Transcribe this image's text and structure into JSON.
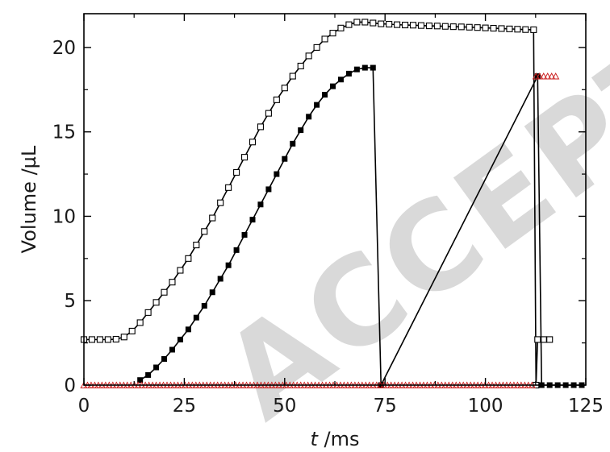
{
  "chart_data": {
    "type": "scatter",
    "xlabel_italic": "t",
    "xlabel_unit": " /ms",
    "ylabel": "Volume /µL",
    "xlim": [
      0,
      125
    ],
    "ylim": [
      0,
      22
    ],
    "xticks": [
      0,
      25,
      50,
      75,
      100,
      125
    ],
    "yticks": [
      0,
      5,
      10,
      15,
      20
    ],
    "grid": false,
    "legend": "none",
    "watermark": "ACCEPTED MANUSCRIPT",
    "series": [
      {
        "marker": "open-square",
        "color": "#000000",
        "connect": true,
        "points": [
          [
            0,
            2.7
          ],
          [
            2,
            2.7
          ],
          [
            4,
            2.7
          ],
          [
            6,
            2.7
          ],
          [
            8,
            2.72
          ],
          [
            10,
            2.85
          ],
          [
            12,
            3.2
          ],
          [
            14,
            3.7
          ],
          [
            16,
            4.3
          ],
          [
            18,
            4.9
          ],
          [
            20,
            5.5
          ],
          [
            22,
            6.1
          ],
          [
            24,
            6.8
          ],
          [
            26,
            7.5
          ],
          [
            28,
            8.3
          ],
          [
            30,
            9.1
          ],
          [
            32,
            9.9
          ],
          [
            34,
            10.8
          ],
          [
            36,
            11.7
          ],
          [
            38,
            12.6
          ],
          [
            40,
            13.5
          ],
          [
            42,
            14.4
          ],
          [
            44,
            15.3
          ],
          [
            46,
            16.1
          ],
          [
            48,
            16.9
          ],
          [
            50,
            17.6
          ],
          [
            52,
            18.3
          ],
          [
            54,
            18.9
          ],
          [
            56,
            19.5
          ],
          [
            58,
            20.0
          ],
          [
            60,
            20.5
          ],
          [
            62,
            20.85
          ],
          [
            64,
            21.15
          ],
          [
            66,
            21.35
          ],
          [
            68,
            21.5
          ],
          [
            70,
            21.5
          ],
          [
            72,
            21.45
          ],
          [
            74,
            21.4
          ],
          [
            76,
            21.38
          ],
          [
            78,
            21.35
          ],
          [
            80,
            21.33
          ],
          [
            82,
            21.32
          ],
          [
            84,
            21.3
          ],
          [
            86,
            21.28
          ],
          [
            88,
            21.27
          ],
          [
            90,
            21.25
          ],
          [
            92,
            21.23
          ],
          [
            94,
            21.22
          ],
          [
            96,
            21.2
          ],
          [
            98,
            21.18
          ],
          [
            100,
            21.16
          ],
          [
            102,
            21.14
          ],
          [
            104,
            21.12
          ],
          [
            106,
            21.1
          ],
          [
            108,
            21.08
          ],
          [
            110,
            21.06
          ],
          [
            112,
            21.05
          ],
          [
            112.6,
            0.0
          ],
          [
            113,
            2.7
          ],
          [
            114.5,
            2.7
          ],
          [
            116,
            2.7
          ]
        ]
      },
      {
        "marker": "filled-square",
        "color": "#000000",
        "connect": true,
        "points": [
          [
            14,
            0.3
          ],
          [
            16,
            0.6
          ],
          [
            18,
            1.05
          ],
          [
            20,
            1.55
          ],
          [
            22,
            2.1
          ],
          [
            24,
            2.7
          ],
          [
            26,
            3.3
          ],
          [
            28,
            4.0
          ],
          [
            30,
            4.7
          ],
          [
            32,
            5.5
          ],
          [
            34,
            6.3
          ],
          [
            36,
            7.1
          ],
          [
            38,
            8.0
          ],
          [
            40,
            8.9
          ],
          [
            42,
            9.8
          ],
          [
            44,
            10.7
          ],
          [
            46,
            11.6
          ],
          [
            48,
            12.5
          ],
          [
            50,
            13.4
          ],
          [
            52,
            14.3
          ],
          [
            54,
            15.1
          ],
          [
            56,
            15.9
          ],
          [
            58,
            16.6
          ],
          [
            60,
            17.2
          ],
          [
            62,
            17.7
          ],
          [
            64,
            18.1
          ],
          [
            66,
            18.45
          ],
          [
            68,
            18.7
          ],
          [
            70,
            18.8
          ],
          [
            72,
            18.8
          ],
          [
            74,
            0.0
          ],
          [
            113,
            18.3
          ],
          [
            114,
            0.0
          ],
          [
            116,
            0.0
          ],
          [
            118,
            0.0
          ],
          [
            120,
            0.0
          ],
          [
            122,
            0.0
          ],
          [
            124,
            0.0
          ]
        ]
      },
      {
        "marker": "open-triangle",
        "color": "#cc2222",
        "connect": false,
        "x_start": 0,
        "x_end": 112,
        "x_step": 0.9,
        "y": 0.0,
        "extra_points": [
          [
            112.6,
            18.3
          ],
          [
            113.5,
            18.3
          ],
          [
            114.5,
            18.3
          ],
          [
            115.5,
            18.3
          ],
          [
            116.5,
            18.3
          ],
          [
            117.5,
            18.3
          ]
        ]
      }
    ]
  }
}
